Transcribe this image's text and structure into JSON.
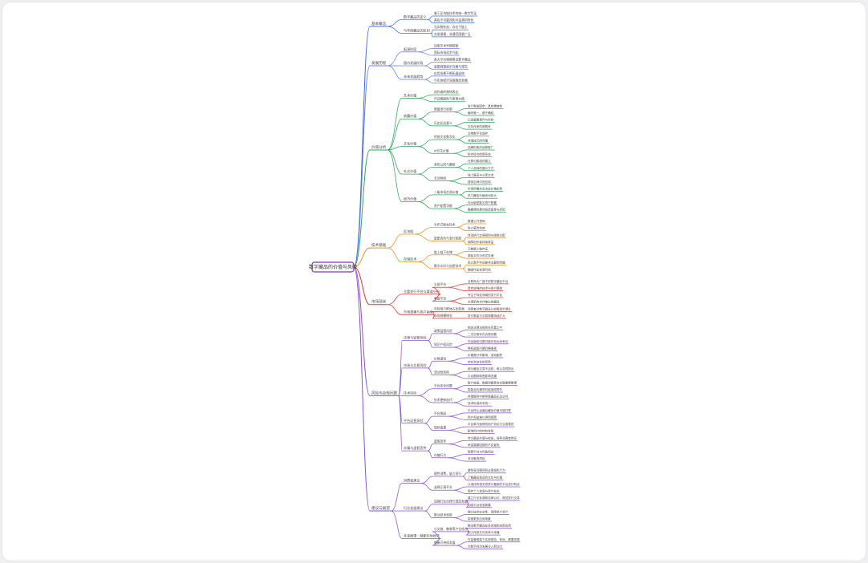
{
  "mindmap": {
    "root": "数字藏品的价值与风险",
    "colors": {
      "b1": "#3b6fd8",
      "b2": "#6a7de0",
      "b3": "#27a85a",
      "b4": "#f08a1c",
      "b5": "#d93636",
      "b6": "#8b4fd6",
      "b7": "#8b4fd6"
    },
    "branches": [
      {
        "label": "基本概念",
        "children": [
          {
            "label": "数字藏品的定义",
            "children": [
              {
                "label": "基于区块链技术的唯一数字凭证"
              },
              {
                "label": "具有不可篡改和可追溯的特性"
              }
            ]
          },
          {
            "label": "与传统藏品的区别",
            "children": [
              {
                "label": "无实物形态，存在于链上"
              },
              {
                "label": "交易便捷，流通范围更广泛"
              }
            ]
          }
        ]
      },
      {
        "label": "发展历程",
        "children": [
          {
            "label": "起源阶段",
            "children": [
              {
                "label": "加密艺术早期探索"
              },
              {
                "label": "国际市场初步兴起"
              }
            ]
          },
          {
            "label": "国内发展阶段",
            "children": [
              {
                "label": "各大平台相继推出数字藏品"
              },
              {
                "label": "监管政策逐步完善与规范"
              }
            ]
          },
          {
            "label": "未来发展趋势",
            "children": [
              {
                "label": "应用场景不断拓展延伸"
              },
              {
                "label": "与实体经济深度融合发展"
              }
            ]
          }
        ]
      },
      {
        "label": "价值分析",
        "children": [
          {
            "label": "艺术价值",
            "children": [
              {
                "label": "创作者的独特表达"
              },
              {
                "label": "作品稀缺性与审美价值"
              }
            ]
          },
          {
            "label": "收藏价值",
            "children": [
              {
                "label": "限量发行机制",
                "children": [
                  {
                    "label": "发行数量固定，具有稀缺性"
                  },
                  {
                    "label": "编号唯一，便于确权"
                  }
                ]
              },
              {
                "label": "历史纪念意义",
                "children": [
                  {
                    "label": "记录重要事件与时刻"
                  },
                  {
                    "label": "文化传承的新载体"
                  }
                ]
              }
            ]
          },
          {
            "label": "文化价值",
            "children": [
              {
                "label": "传统文化数字化",
                "children": [
                  {
                    "label": "文物数字化保护"
                  },
                  {
                    "label": "非遗技艺的传播"
                  }
                ]
              },
              {
                "label": "IP衍生价值",
                "children": [
                  {
                    "label": "品牌形象的延伸推广"
                  },
                  {
                    "label": "粉丝经济的新形态"
                  }
                ]
              }
            ]
          },
          {
            "label": "社交价值",
            "children": [
              {
                "label": "身份认同与圈层",
                "children": [
                  {
                    "label": "社群归属感的建立"
                  },
                  {
                    "label": "个人品味的展示方式"
                  }
                ]
              },
              {
                "label": "互动体验",
                "children": [
                  {
                    "label": "线上展览与分享交流"
                  },
                  {
                    "label": "虚拟空间中的应用"
                  }
                ]
              }
            ]
          },
          {
            "label": "经济价值",
            "children": [
              {
                "label": "二级市场交易价格",
                "children": [
                  {
                    "label": "市场供需关系决定价格走势"
                  },
                  {
                    "label": "热门藏品价格波动较大"
                  }
                ]
              },
              {
                "label": "资产配置功能",
                "children": [
                  {
                    "label": "作为新型数字资产配置"
                  },
                  {
                    "label": "需要理性看待投资属性与风险"
                  }
                ]
              }
            ]
          }
        ]
      },
      {
        "label": "技术基础",
        "children": [
          {
            "label": "区块链",
            "children": [
              {
                "label": "分布式账本技术",
                "children": [
                  {
                    "label": "数据公开透明"
                  },
                  {
                    "label": "防止篡改伪造"
                  }
                ]
              },
              {
                "label": "智能合约与发行机制",
                "children": [
                  {
                    "label": "自动执行交易规则与版税分配"
                  },
                  {
                    "label": "保障创作者持续收益"
                  }
                ]
              }
            ]
          },
          {
            "label": "存储技术",
            "children": [
              {
                "label": "链上链下存储",
                "children": [
                  {
                    "label": "元数据上链存证"
                  },
                  {
                    "label": "原始文件分布式存储"
                  }
                ]
              },
              {
                "label": "数字水印与加密技术",
                "children": [
                  {
                    "label": "防止数字作品被非法复制传播"
                  },
                  {
                    "label": "确保作品来源可信"
                  }
                ]
              }
            ]
          }
        ]
      },
      {
        "label": "市场现状",
        "children": [
          {
            "label": "主要发行平台与渠道分布",
            "children": [
              {
                "label": "头部平台",
                "children": [
                  {
                    "label": "互联网大厂旗下的数字藏品平台"
                  },
                  {
                    "label": "具有较强的技术与用户基础"
                  }
                ]
              },
              {
                "label": "垂直平台",
                "children": [
                  {
                    "label": "专注于特定领域的发行平台"
                  },
                  {
                    "label": "文博机构合作推出的藏品"
                  }
                ]
              }
            ]
          },
          {
            "label": "市场规模与用户画像",
            "children": [
              {
                "label": "年轻用户群体占比较高",
                "children": [
                  {
                    "label": "消费者对数字藏品认知度逐步提升"
                  }
                ]
              },
              {
                "label": "市场规模增长",
                "children": [
                  {
                    "label": "发行数量与交易规模持续扩大"
                  }
                ]
              }
            ]
          }
        ]
      },
      {
        "label": "风险与合规问题",
        "children": [
          {
            "label": "法律与监管风险",
            "children": [
              {
                "label": "政策监管风险",
                "children": [
                  {
                    "label": "相关法律法规尚在完善之中"
                  },
                  {
                    "label": "二次交易存在合规问题"
                  }
                ]
              },
              {
                "label": "知识产权风险",
                "children": [
                  {
                    "label": "作品版权归属可能存在纠纷争议"
                  },
                  {
                    "label": "侵权盗版问题仍需重视"
                  }
                ]
              }
            ]
          },
          {
            "label": "市场与交易风险",
            "children": [
              {
                "label": "价格波动",
                "children": [
                  {
                    "label": "价格受炒作影响，波动剧烈"
                  },
                  {
                    "label": "存在泡沫化的风险"
                  }
                ]
              },
              {
                "label": "流动性风险",
                "children": [
                  {
                    "label": "部分藏品交易不活跃，难以变现退出"
                  },
                  {
                    "label": "平台限制转售影响流通"
                  }
                ]
              }
            ]
          },
          {
            "label": "技术风险",
            "children": [
              {
                "label": "平台安全问题",
                "children": [
                  {
                    "label": "账户被盗、数据泄露等安全隐患需警惕"
                  },
                  {
                    "label": "智能合约漏洞可能造成损失"
                  }
                ]
              },
              {
                "label": "技术更新迭代",
                "children": [
                  {
                    "label": "存储服务中断导致藏品无法访问"
                  },
                  {
                    "label": "技术标准尚未统一"
                  }
                ]
              }
            ]
          },
          {
            "label": "平台运营风险",
            "children": [
              {
                "label": "平台倒闭",
                "children": [
                  {
                    "label": "平台停止运营后藏品价值可能归零"
                  },
                  {
                    "label": "用户权益难以得到保障"
                  }
                ]
              },
              {
                "label": "规则变更",
                "children": [
                  {
                    "label": "平台单方面修改用户协议与交易规则"
                  },
                  {
                    "label": "影响用户的持有体验"
                  }
                ]
              }
            ]
          },
          {
            "label": "诈骗与虚假宣传",
            "children": [
              {
                "label": "虚假宣传",
                "children": [
                  {
                    "label": "夸大藏品价值与收益，误导消费者购买"
                  },
                  {
                    "label": "承诺高额回报的不实宣传"
                  }
                ]
              },
              {
                "label": "诈骗行为",
                "children": [
                  {
                    "label": "假冒平台与钓鱼网站"
                  },
                  {
                    "label": "非法集资风险"
                  }
                ]
              }
            ]
          }
        ]
      },
      {
        "label": "建议与展望",
        "children": [
          {
            "label": "消费者建议",
            "children": [
              {
                "label": "理性消费，量力而行",
                "children": [
                  {
                    "label": "避免盲目跟风和过度投机行为"
                  },
                  {
                    "label": "了解藏品背后的文化与价值"
                  }
                ]
              },
              {
                "label": "选择正规平台",
                "children": [
                  {
                    "label": "认准持有相关资质与备案的平台进行购买"
                  },
                  {
                    "label": "保护个人信息与资产安全"
                  }
                ]
              }
            ]
          },
          {
            "label": "行业发展建议",
            "children": [
              {
                "label": "加强行业自律与规范发展",
                "children": [
                  {
                    "label": "建立行业标准和自律公约，规范发行交易"
                  },
                  {
                    "label": "加强平台信息披露"
                  }
                ]
              },
              {
                "label": "推动技术创新",
                "children": [
                  {
                    "label": "提升技术安全性，保障用户资产"
                  },
                  {
                    "label": "探索更多应用场景"
                  }
                ]
              }
            ]
          },
          {
            "label": "未来展望：赋能实体经济",
            "children": [
              {
                "label": "与文旅、教育等产业结合",
                "children": [
                  {
                    "label": "推动数字藏品在多领域的创新应用"
                  },
                  {
                    "label": "助力传统文化传承与传播"
                  }
                ]
              },
              {
                "label": "健康可持续发展",
                "children": [
                  {
                    "label": "在监管框架下实现规范、有序、健康发展"
                  },
                  {
                    "label": "为数字经济发展注入新动力"
                  }
                ]
              }
            ]
          }
        ]
      }
    ]
  }
}
